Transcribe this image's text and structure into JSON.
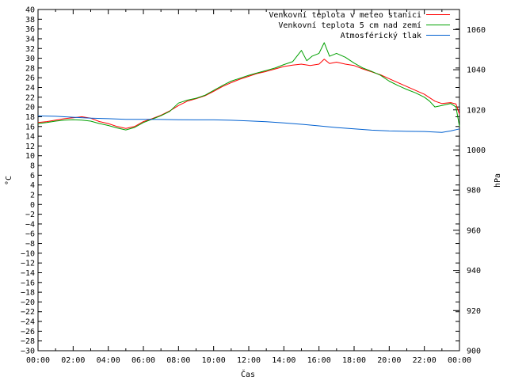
{
  "chart_data": {
    "type": "line",
    "title": "",
    "xlabel": "Čas",
    "ylabel": "°C",
    "y2label": "hPa",
    "xlim": [
      "00:00",
      "24:00"
    ],
    "x_tick_labels": [
      "00:00",
      "02:00",
      "04:00",
      "06:00",
      "08:00",
      "10:00",
      "12:00",
      "14:00",
      "16:00",
      "18:00",
      "20:00",
      "22:00",
      "00:00"
    ],
    "ylim": [
      -30,
      40
    ],
    "y_ticks": [
      40,
      38,
      36,
      34,
      32,
      30,
      28,
      26,
      24,
      22,
      20,
      18,
      16,
      14,
      12,
      10,
      8,
      6,
      4,
      2,
      0,
      -2,
      -4,
      -6,
      -8,
      -10,
      -12,
      -14,
      -16,
      -18,
      -20,
      -22,
      -24,
      -26,
      -28,
      -30
    ],
    "y_tick_labels": [
      "40",
      "38",
      "36",
      "34",
      "32",
      "30",
      "28",
      "26",
      "24",
      "22",
      "20",
      "18",
      "16",
      "14",
      "12",
      "10",
      "8",
      "6",
      "4",
      "2",
      "0",
      "−2",
      "−4",
      "−6",
      "−8",
      "−10",
      "−12",
      "−14",
      "−16",
      "−18",
      "−20",
      "−22",
      "−24",
      "−26",
      "−28",
      "−30"
    ],
    "y2lim": [
      900,
      1070
    ],
    "y2_ticks": [
      1060,
      1040,
      1020,
      1000,
      980,
      960,
      940,
      920,
      900
    ],
    "y2_tick_labels": [
      "1060",
      "1040",
      "1020",
      "1000",
      "980",
      "960",
      "940",
      "920",
      "900"
    ],
    "grid": false,
    "legend_position": "top-right",
    "series": [
      {
        "name": "Venkovní teplota v meteo stanici",
        "color": "#ff0000",
        "axis": "left",
        "x": [
          0,
          0.5,
          1,
          1.5,
          2,
          2.5,
          3,
          3.5,
          4,
          4.5,
          5,
          5.5,
          6,
          6.5,
          7,
          7.5,
          8,
          8.5,
          9,
          9.5,
          10,
          10.5,
          11,
          11.5,
          12,
          12.5,
          13,
          13.5,
          14,
          14.5,
          15,
          15.5,
          16,
          16.3,
          16.6,
          17,
          17.5,
          18,
          18.5,
          19,
          19.5,
          20,
          20.5,
          21,
          21.5,
          22,
          22.3,
          22.6,
          23,
          23.5,
          23.8,
          24
        ],
        "y": [
          16.8,
          17.0,
          17.3,
          17.6,
          17.8,
          18.0,
          17.7,
          17.0,
          16.6,
          16.0,
          15.6,
          16.0,
          17.0,
          17.6,
          18.3,
          19.2,
          20.3,
          21.2,
          21.7,
          22.3,
          23.2,
          24.2,
          25.0,
          25.7,
          26.3,
          26.9,
          27.3,
          27.8,
          28.3,
          28.6,
          28.8,
          28.5,
          28.8,
          29.8,
          28.9,
          29.2,
          28.8,
          28.5,
          27.8,
          27.2,
          26.6,
          25.8,
          25.0,
          24.2,
          23.4,
          22.6,
          21.9,
          21.2,
          20.7,
          20.9,
          20.6,
          18.5
        ]
      },
      {
        "name": "Venkovní teplota 5 cm nad zemí",
        "color": "#00a000",
        "axis": "left",
        "x": [
          0,
          0.5,
          1,
          1.5,
          2,
          2.5,
          3,
          3.5,
          4,
          4.5,
          5,
          5.5,
          6,
          6.5,
          7,
          7.5,
          8,
          8.5,
          9,
          9.5,
          10,
          10.5,
          11,
          11.5,
          12,
          12.5,
          13,
          13.5,
          14,
          14.5,
          15,
          15.3,
          15.6,
          16,
          16.3,
          16.6,
          17,
          17.5,
          18,
          18.5,
          19,
          19.5,
          20,
          20.5,
          21,
          21.5,
          22,
          22.3,
          22.6,
          23,
          23.5,
          23.8,
          24
        ],
        "y": [
          16.6,
          16.8,
          17.1,
          17.3,
          17.4,
          17.3,
          17.1,
          16.6,
          16.2,
          15.7,
          15.3,
          15.8,
          16.8,
          17.5,
          18.2,
          19.1,
          20.8,
          21.4,
          21.8,
          22.4,
          23.4,
          24.4,
          25.3,
          25.9,
          26.5,
          27.0,
          27.5,
          28.0,
          28.7,
          29.3,
          31.6,
          29.5,
          30.4,
          31.0,
          33.2,
          30.4,
          31.0,
          30.2,
          29.0,
          28.0,
          27.3,
          26.5,
          25.3,
          24.4,
          23.6,
          22.9,
          22.0,
          21.2,
          20.0,
          20.3,
          20.7,
          20.0,
          16.0
        ]
      },
      {
        "name": "Atmosférický tlak",
        "color": "#0060d0",
        "axis": "right",
        "x": [
          0,
          1,
          2,
          3,
          4,
          5,
          6,
          7,
          8,
          9,
          10,
          11,
          12,
          13,
          14,
          15,
          16,
          17,
          18,
          19,
          20,
          21,
          22,
          23,
          23.5,
          24
        ],
        "y": [
          1017.0,
          1016.8,
          1016.3,
          1015.9,
          1015.6,
          1015.3,
          1015.3,
          1015.2,
          1015.1,
          1015.0,
          1015.0,
          1014.8,
          1014.5,
          1014.1,
          1013.5,
          1012.8,
          1012.0,
          1011.2,
          1010.5,
          1009.9,
          1009.5,
          1009.3,
          1009.2,
          1008.8,
          1009.5,
          1010.5
        ]
      }
    ]
  }
}
